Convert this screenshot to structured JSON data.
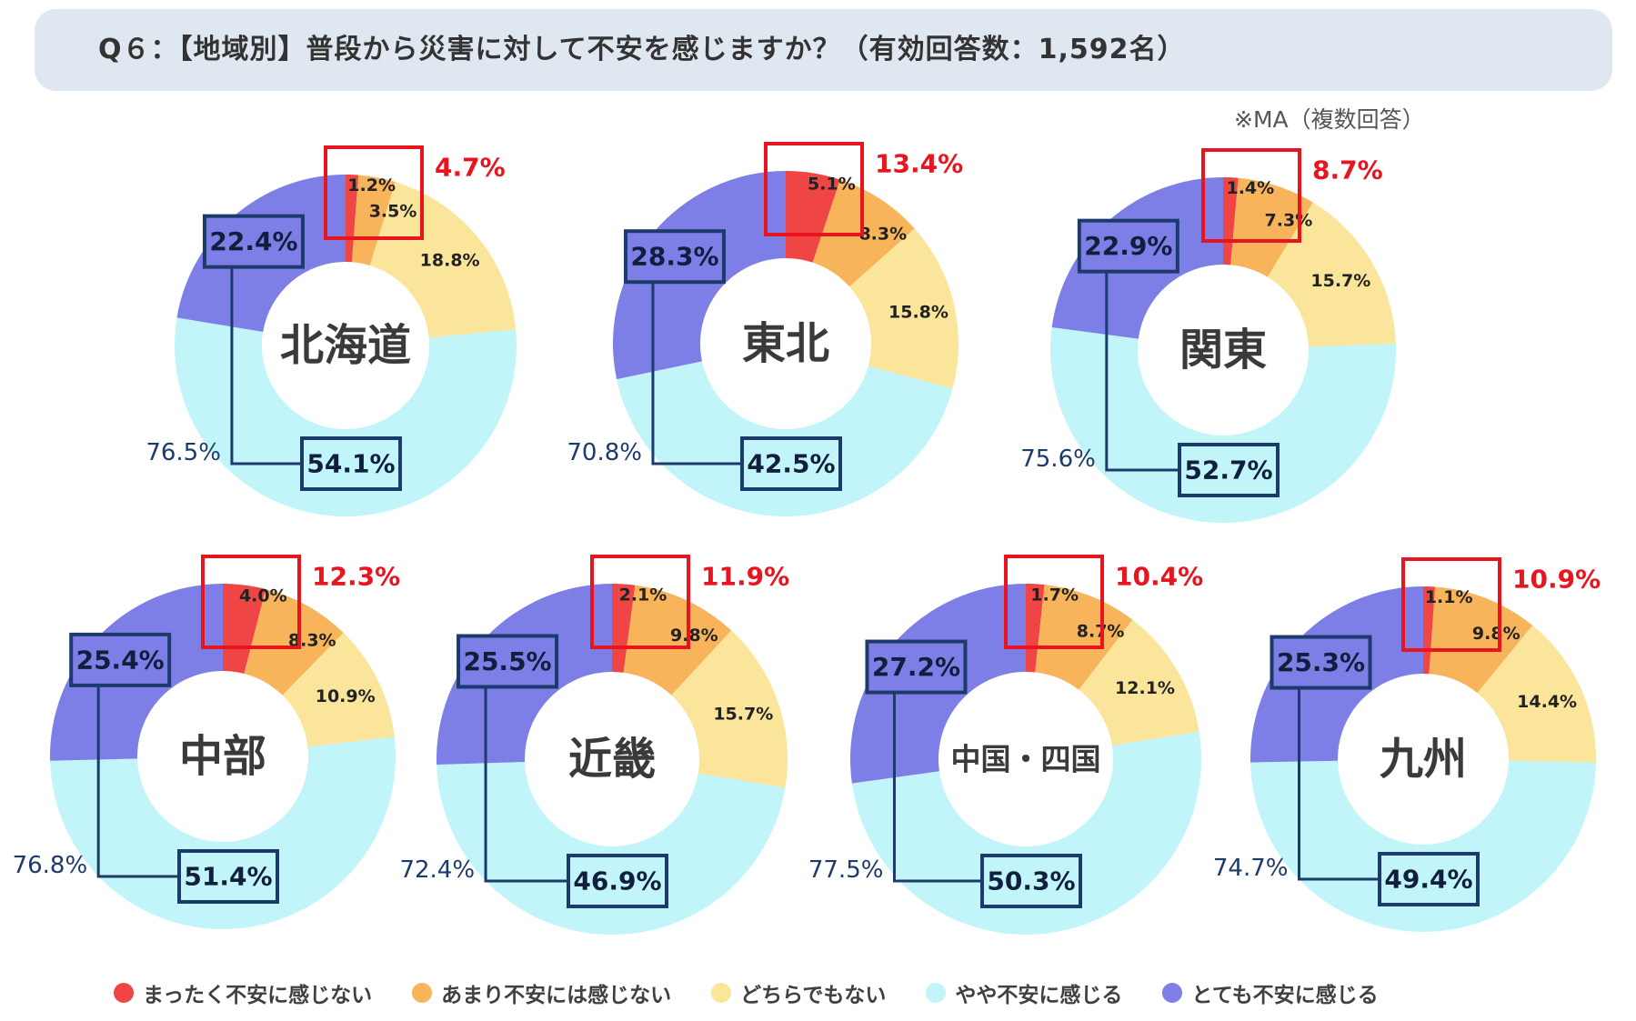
{
  "title": "Q６：【地域別】普段から災害に対して不安を感じますか？（有効回答数：1,592名）",
  "note": "※MA（複数回答）",
  "colors": {
    "まったく不安に感じない": "#f04545",
    "あまり不安には感じない": "#f7b45a",
    "どちらでもない": "#fae59a",
    "やや不安に感じる": "#c2f5fa",
    "とても不安に感じる": "#7d7fe6",
    "highlight_red": "#e8141e",
    "highlight_navy": "#1c3a6b"
  },
  "legend": [
    {
      "label": "まったく不安に感じない",
      "color": "#f04545"
    },
    {
      "label": "あまり不安には感じない",
      "color": "#f7b45a"
    },
    {
      "label": "どちらでもない",
      "color": "#fae59a"
    },
    {
      "label": "やや不安に感じる",
      "color": "#c2f5fa"
    },
    {
      "label": "とても不安に感じる",
      "color": "#7d7fe6"
    }
  ],
  "chart_data": [
    {
      "type": "pie",
      "region": "北海道",
      "categories": [
        "まったく不安に感じない",
        "あまり不安には感じない",
        "どちらでもない",
        "やや不安に感じる",
        "とても不安に感じる"
      ],
      "values": [
        1.2,
        3.5,
        18.8,
        54.1,
        22.4
      ],
      "not_anxious_total": "4.7%",
      "anxious_total": "76.5%"
    },
    {
      "type": "pie",
      "region": "東北",
      "categories": [
        "まったく不安に感じない",
        "あまり不安には感じない",
        "どちらでもない",
        "やや不安に感じる",
        "とても不安に感じる"
      ],
      "values": [
        5.1,
        8.3,
        15.8,
        42.5,
        28.3
      ],
      "not_anxious_total": "13.4%",
      "anxious_total": "70.8%"
    },
    {
      "type": "pie",
      "region": "関東",
      "categories": [
        "まったく不安に感じない",
        "あまり不安には感じない",
        "どちらでもない",
        "やや不安に感じる",
        "とても不安に感じる"
      ],
      "values": [
        1.4,
        7.3,
        15.7,
        52.7,
        22.9
      ],
      "not_anxious_total": "8.7%",
      "anxious_total": "75.6%"
    },
    {
      "type": "pie",
      "region": "中部",
      "categories": [
        "まったく不安に感じない",
        "あまり不安には感じない",
        "どちらでもない",
        "やや不安に感じる",
        "とても不安に感じる"
      ],
      "values": [
        4.0,
        8.3,
        10.9,
        51.4,
        25.4
      ],
      "not_anxious_total": "12.3%",
      "anxious_total": "76.8%"
    },
    {
      "type": "pie",
      "region": "近畿",
      "categories": [
        "まったく不安に感じない",
        "あまり不安には感じない",
        "どちらでもない",
        "やや不安に感じる",
        "とても不安に感じる"
      ],
      "values": [
        2.1,
        9.8,
        15.7,
        46.9,
        25.5
      ],
      "not_anxious_total": "11.9%",
      "anxious_total": "72.4%"
    },
    {
      "type": "pie",
      "region": "中国・四国",
      "categories": [
        "まったく不安に感じない",
        "あまり不安には感じない",
        "どちらでもない",
        "やや不安に感じる",
        "とても不安に感じる"
      ],
      "values": [
        1.7,
        8.7,
        12.1,
        50.3,
        27.2
      ],
      "not_anxious_total": "10.4%",
      "anxious_total": "77.5%"
    },
    {
      "type": "pie",
      "region": "九州",
      "categories": [
        "まったく不安に感じない",
        "あまり不安には感じない",
        "どちらでもない",
        "やや不安に感じる",
        "とても不安に感じる"
      ],
      "values": [
        1.1,
        9.8,
        14.4,
        49.4,
        25.3
      ],
      "not_anxious_total": "10.9%",
      "anxious_total": "74.7%"
    }
  ]
}
